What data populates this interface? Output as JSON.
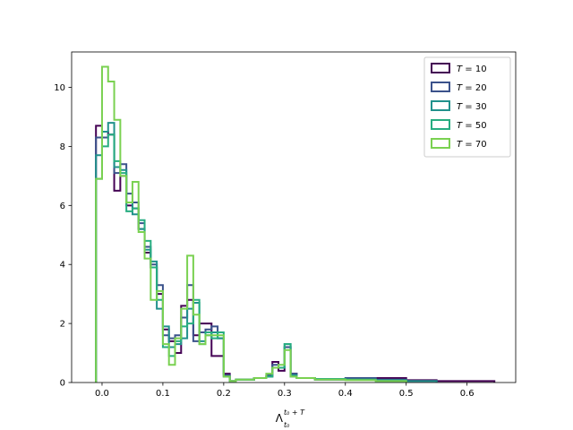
{
  "chart_data": {
    "type": "histogram-step",
    "xlabel": {
      "base": "Λ",
      "sup": "t₀ + T",
      "sub": "t₀"
    },
    "ylabel": "",
    "xlim": [
      -0.05,
      0.68
    ],
    "ylim": [
      0,
      11.2
    ],
    "xticks": [
      0.0,
      0.1,
      0.2,
      0.3,
      0.4,
      0.5,
      0.6
    ],
    "xtick_labels": [
      "0.0",
      "0.1",
      "0.2",
      "0.3",
      "0.4",
      "0.5",
      "0.6"
    ],
    "yticks": [
      0,
      2,
      4,
      6,
      8,
      10
    ],
    "ytick_labels": [
      "0",
      "2",
      "4",
      "6",
      "8",
      "10"
    ],
    "legend_position": "top-right",
    "series": [
      {
        "name": "T = 10",
        "label_var": "T",
        "label_val": "10",
        "color": "#440154",
        "edges": [
          -0.01,
          0.0,
          0.01,
          0.02,
          0.03,
          0.04,
          0.05,
          0.06,
          0.07,
          0.08,
          0.09,
          0.1,
          0.11,
          0.12,
          0.13,
          0.14,
          0.15,
          0.16,
          0.17,
          0.18,
          0.19,
          0.2,
          0.21,
          0.22,
          0.25,
          0.27,
          0.28,
          0.29,
          0.3,
          0.31,
          0.32,
          0.35,
          0.4,
          0.44,
          0.5,
          0.55,
          0.6,
          0.645
        ],
        "values": [
          8.7,
          8.5,
          8.4,
          6.5,
          7.0,
          6.0,
          5.9,
          5.2,
          4.4,
          3.9,
          3.0,
          1.8,
          1.4,
          1.0,
          2.6,
          2.8,
          1.6,
          2.0,
          2.0,
          0.9,
          0.9,
          0.3,
          0.05,
          0.1,
          0.15,
          0.2,
          0.7,
          0.4,
          1.2,
          0.3,
          0.15,
          0.1,
          0.12,
          0.15,
          0.08,
          0.05,
          0.05
        ]
      },
      {
        "name": "T = 20",
        "label_var": "T",
        "label_val": "20",
        "color": "#3b528b",
        "edges": [
          -0.01,
          0.0,
          0.01,
          0.02,
          0.03,
          0.04,
          0.05,
          0.06,
          0.07,
          0.08,
          0.09,
          0.1,
          0.11,
          0.12,
          0.13,
          0.14,
          0.15,
          0.16,
          0.17,
          0.18,
          0.19,
          0.2,
          0.21,
          0.22,
          0.25,
          0.27,
          0.28,
          0.29,
          0.3,
          0.31,
          0.32,
          0.35,
          0.4,
          0.45,
          0.5,
          0.55
        ],
        "values": [
          8.3,
          8.3,
          8.4,
          7.1,
          7.4,
          6.4,
          6.1,
          5.4,
          4.6,
          4.0,
          3.3,
          1.6,
          1.5,
          1.6,
          2.2,
          3.3,
          1.4,
          1.7,
          1.8,
          1.9,
          1.5,
          0.25,
          0.05,
          0.1,
          0.15,
          0.25,
          0.6,
          0.5,
          1.2,
          0.3,
          0.15,
          0.12,
          0.15,
          0.1,
          0.05
        ]
      },
      {
        "name": "T = 30",
        "label_var": "T",
        "label_val": "30",
        "color": "#21918c",
        "edges": [
          -0.01,
          0.0,
          0.01,
          0.02,
          0.03,
          0.04,
          0.05,
          0.06,
          0.07,
          0.08,
          0.09,
          0.1,
          0.11,
          0.12,
          0.13,
          0.14,
          0.15,
          0.16,
          0.17,
          0.18,
          0.19,
          0.2,
          0.21,
          0.22,
          0.25,
          0.27,
          0.28,
          0.29,
          0.3,
          0.31,
          0.32,
          0.35,
          0.4,
          0.45,
          0.5,
          0.55
        ],
        "values": [
          7.7,
          8.5,
          8.8,
          7.3,
          7.2,
          6.1,
          5.7,
          5.2,
          4.5,
          4.1,
          2.5,
          1.9,
          1.2,
          1.3,
          1.5,
          2.5,
          2.7,
          1.4,
          1.6,
          1.7,
          1.5,
          0.2,
          0.05,
          0.1,
          0.15,
          0.2,
          0.5,
          0.5,
          1.3,
          0.25,
          0.15,
          0.1,
          0.1,
          0.08,
          0.05
        ]
      },
      {
        "name": "T = 50",
        "label_var": "T",
        "label_val": "50",
        "color": "#27ad81",
        "edges": [
          -0.01,
          0.0,
          0.01,
          0.02,
          0.03,
          0.04,
          0.05,
          0.06,
          0.07,
          0.08,
          0.09,
          0.1,
          0.11,
          0.12,
          0.13,
          0.14,
          0.15,
          0.16,
          0.17,
          0.18,
          0.19,
          0.2,
          0.21,
          0.22,
          0.25,
          0.27,
          0.28,
          0.29,
          0.3,
          0.31,
          0.32,
          0.35,
          0.4,
          0.45,
          0.5
        ],
        "values": [
          6.9,
          8.0,
          8.4,
          7.5,
          7.1,
          5.8,
          5.9,
          5.5,
          4.8,
          3.9,
          2.8,
          1.2,
          0.9,
          1.4,
          1.9,
          2.0,
          2.8,
          1.3,
          1.7,
          1.5,
          1.7,
          0.2,
          0.05,
          0.1,
          0.15,
          0.2,
          0.5,
          0.5,
          1.3,
          0.2,
          0.15,
          0.12,
          0.1,
          0.05
        ]
      },
      {
        "name": "T = 70",
        "label_var": "T",
        "label_val": "70",
        "color": "#7ad151",
        "edges": [
          -0.01,
          0.0,
          0.01,
          0.02,
          0.03,
          0.04,
          0.05,
          0.06,
          0.07,
          0.08,
          0.09,
          0.1,
          0.11,
          0.12,
          0.13,
          0.14,
          0.15,
          0.16,
          0.17,
          0.18,
          0.19,
          0.2,
          0.21,
          0.22,
          0.25,
          0.27,
          0.28,
          0.29,
          0.3,
          0.31,
          0.32,
          0.35,
          0.4,
          0.45,
          0.5
        ],
        "values": [
          6.9,
          10.7,
          10.2,
          8.9,
          7.0,
          6.1,
          6.8,
          5.1,
          4.2,
          2.8,
          3.1,
          1.3,
          0.6,
          1.5,
          2.5,
          4.3,
          2.3,
          1.3,
          1.6,
          1.6,
          1.6,
          0.2,
          0.05,
          0.1,
          0.15,
          0.3,
          0.5,
          0.6,
          1.1,
          0.2,
          0.15,
          0.1,
          0.08,
          0.05
        ]
      }
    ]
  }
}
